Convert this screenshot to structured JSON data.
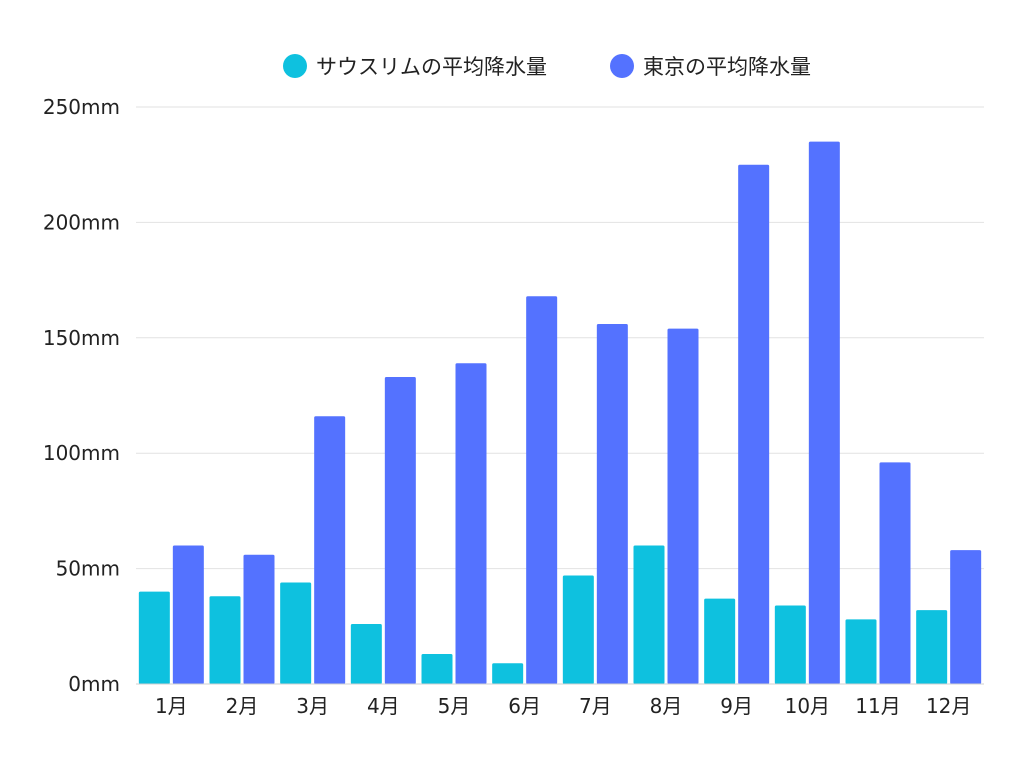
{
  "chart_data": {
    "type": "bar",
    "categories": [
      "1月",
      "2月",
      "3月",
      "4月",
      "5月",
      "6月",
      "7月",
      "8月",
      "9月",
      "10月",
      "11月",
      "12月"
    ],
    "series": [
      {
        "name": "サウスリムの平均降水量",
        "color": "#0ec1df",
        "values": [
          40,
          38,
          44,
          26,
          13,
          9,
          47,
          60,
          37,
          34,
          28,
          32
        ]
      },
      {
        "name": "東京の平均降水量",
        "color": "#5472ff",
        "values": [
          60,
          56,
          116,
          133,
          139,
          168,
          156,
          154,
          225,
          235,
          96,
          58
        ]
      }
    ],
    "ylim": [
      0,
      250
    ],
    "yticks": [
      0,
      50,
      100,
      150,
      200,
      250
    ],
    "ytick_labels": [
      "0mm",
      "50mm",
      "100mm",
      "150mm",
      "200mm",
      "250mm"
    ],
    "grid": true,
    "legend_position": "top",
    "title": "",
    "xlabel": "",
    "ylabel": ""
  }
}
